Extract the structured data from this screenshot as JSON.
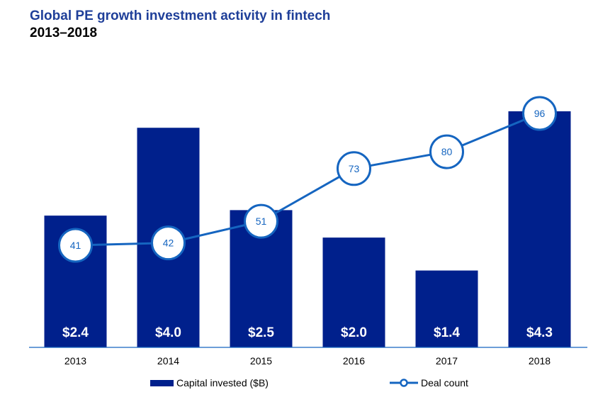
{
  "title": "Global PE growth investment activity in fintech",
  "subtitle": "2013–2018",
  "colors": {
    "bar": "#00208c",
    "line": "#1565c0",
    "title": "#1f3f99",
    "bar_label": "#ffffff",
    "axis": "#1565c0"
  },
  "legend": {
    "capital_label": "Capital invested ($B)",
    "deal_label": "Deal count"
  },
  "chart_data": {
    "type": "bar",
    "title": "Global PE growth investment activity in fintech",
    "subtitle": "2013–2018",
    "categories": [
      "2013",
      "2014",
      "2015",
      "2016",
      "2017",
      "2018"
    ],
    "series": [
      {
        "name": "Capital invested ($B)",
        "type": "bar",
        "values": [
          2.4,
          4.0,
          2.5,
          2.0,
          1.4,
          4.3
        ],
        "labels": [
          "$2.4",
          "$4.0",
          "$2.5",
          "$2.0",
          "$1.4",
          "$4.3"
        ]
      },
      {
        "name": "Deal count",
        "type": "line",
        "values": [
          41,
          42,
          51,
          73,
          80,
          96
        ],
        "labels": [
          "41",
          "42",
          "51",
          "73",
          "80",
          "96"
        ]
      }
    ],
    "legend_position": "bottom",
    "grid": false
  }
}
